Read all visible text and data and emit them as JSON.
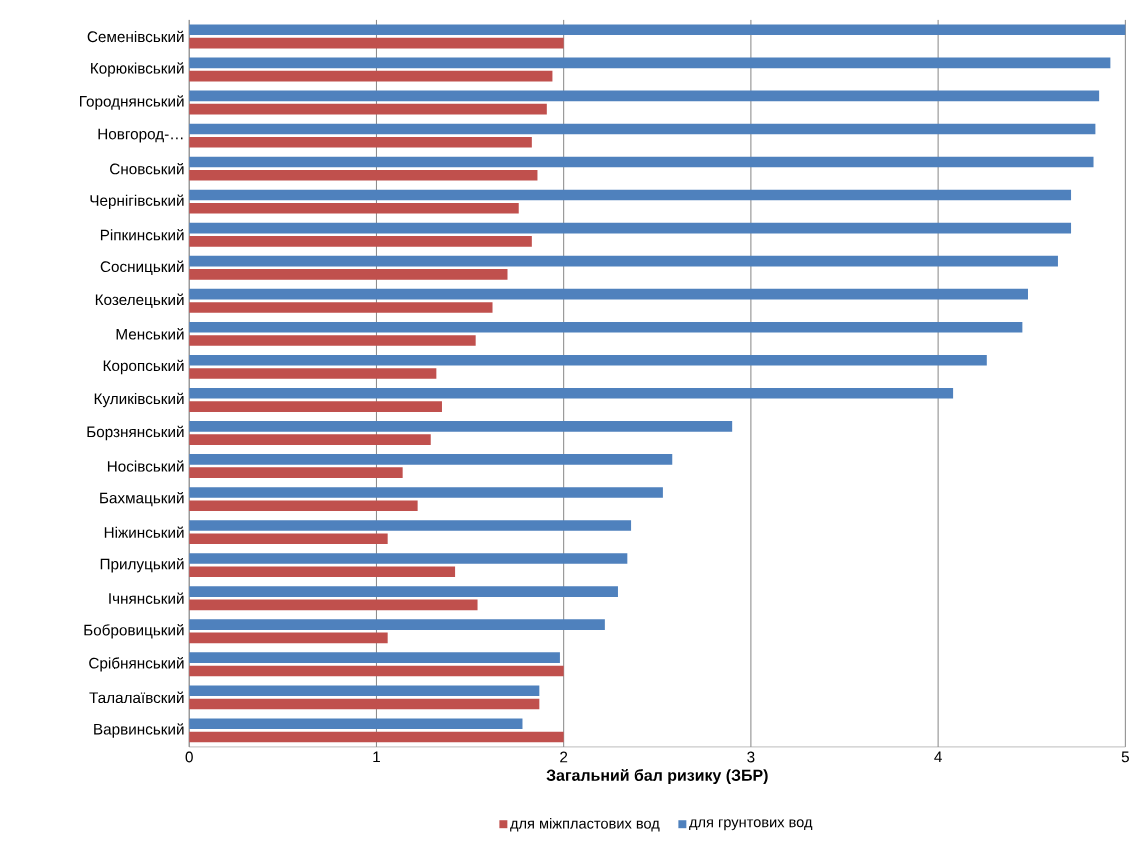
{
  "chart_data": {
    "type": "bar",
    "orientation": "horizontal",
    "xlabel": "Загальний бал ризику (ЗБР)",
    "categories": [
      "Семенівський",
      "Корюківський",
      "Городнянський",
      "Новгород-…",
      "Сновський",
      "Чернігівський",
      "Ріпкинський",
      "Сосницький",
      "Козелецький",
      "Менський",
      "Коропський",
      "Куликівський",
      "Борзнянський",
      "Носівський",
      "Бахмацький",
      "Ніжинський",
      "Прилуцький",
      "Ічнянський",
      "Бобровицький",
      "Срібнянський",
      "Талалаївский",
      "Варвинський"
    ],
    "series": [
      {
        "name": "для міжпластових  вод",
        "color": "#c0504d",
        "values": [
          2.0,
          1.94,
          1.91,
          1.83,
          1.86,
          1.76,
          1.83,
          1.7,
          1.62,
          1.53,
          1.32,
          1.35,
          1.29,
          1.14,
          1.22,
          1.06,
          1.42,
          1.54,
          1.06,
          2.0,
          1.87,
          2.0
        ]
      },
      {
        "name": "для грунтових  вод",
        "color": "#4f81bd",
        "values": [
          5.0,
          4.92,
          4.86,
          4.84,
          4.83,
          4.71,
          4.71,
          4.64,
          4.48,
          4.45,
          4.26,
          4.08,
          2.9,
          2.58,
          2.53,
          2.36,
          2.34,
          2.29,
          2.22,
          1.98,
          1.87,
          1.78
        ]
      }
    ],
    "xlim": [
      0,
      5
    ],
    "xticks": [
      0,
      1,
      2,
      3,
      4,
      5
    ],
    "grid": "x",
    "legend": "bottom"
  }
}
